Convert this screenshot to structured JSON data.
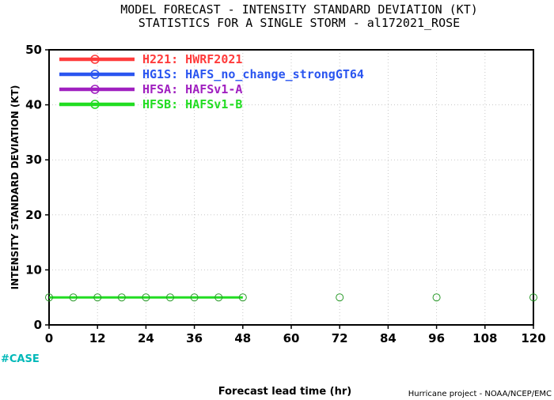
{
  "header": {
    "title_line1": "MODEL FORECAST - INTENSITY STANDARD DEVIATION (KT)",
    "title_line2": "STATISTICS FOR A SINGLE STORM - al172021_ROSE"
  },
  "footer": {
    "case_label": "#CASE",
    "case_color": "#00b8b8",
    "credit": "Hurricane project - NOAA/NCEP/EMC"
  },
  "chart_data": {
    "type": "line",
    "title": "MODEL FORECAST - INTENSITY STANDARD DEVIATION (KT)",
    "subtitle": "STATISTICS FOR A SINGLE STORM - al172021_ROSE",
    "xlabel": "Forecast lead time (hr)",
    "ylabel": "INTENSITY STANDARD DEVIATION (KT)",
    "xlim": [
      0,
      120
    ],
    "ylim": [
      0,
      50
    ],
    "x_ticks": [
      0,
      12,
      24,
      36,
      48,
      60,
      72,
      84,
      96,
      108,
      120
    ],
    "y_ticks": [
      0,
      10,
      20,
      30,
      40,
      50
    ],
    "grid": true,
    "legend_position": "top-left",
    "series": [
      {
        "name": "H221: HWRF2021",
        "color": "#ff3b3b",
        "x": [],
        "y": []
      },
      {
        "name": "HG1S: HAFS_no_change_strongGT64",
        "color": "#2a55f0",
        "x": [],
        "y": []
      },
      {
        "name": "HFSA: HAFSv1-A",
        "color": "#a020c0",
        "x": [],
        "y": []
      },
      {
        "name": "HFSB: HAFSv1-B",
        "color": "#22dd22",
        "x": [
          0,
          6,
          12,
          18,
          24,
          30,
          36,
          42,
          48
        ],
        "y": [
          5,
          5,
          5,
          5,
          5,
          5,
          5,
          5,
          5
        ]
      }
    ],
    "annotations": [
      {
        "name": "case-marker",
        "color": "#2a9a2a",
        "x": [
          72,
          96,
          120
        ],
        "y": [
          5,
          5,
          5
        ]
      }
    ]
  }
}
